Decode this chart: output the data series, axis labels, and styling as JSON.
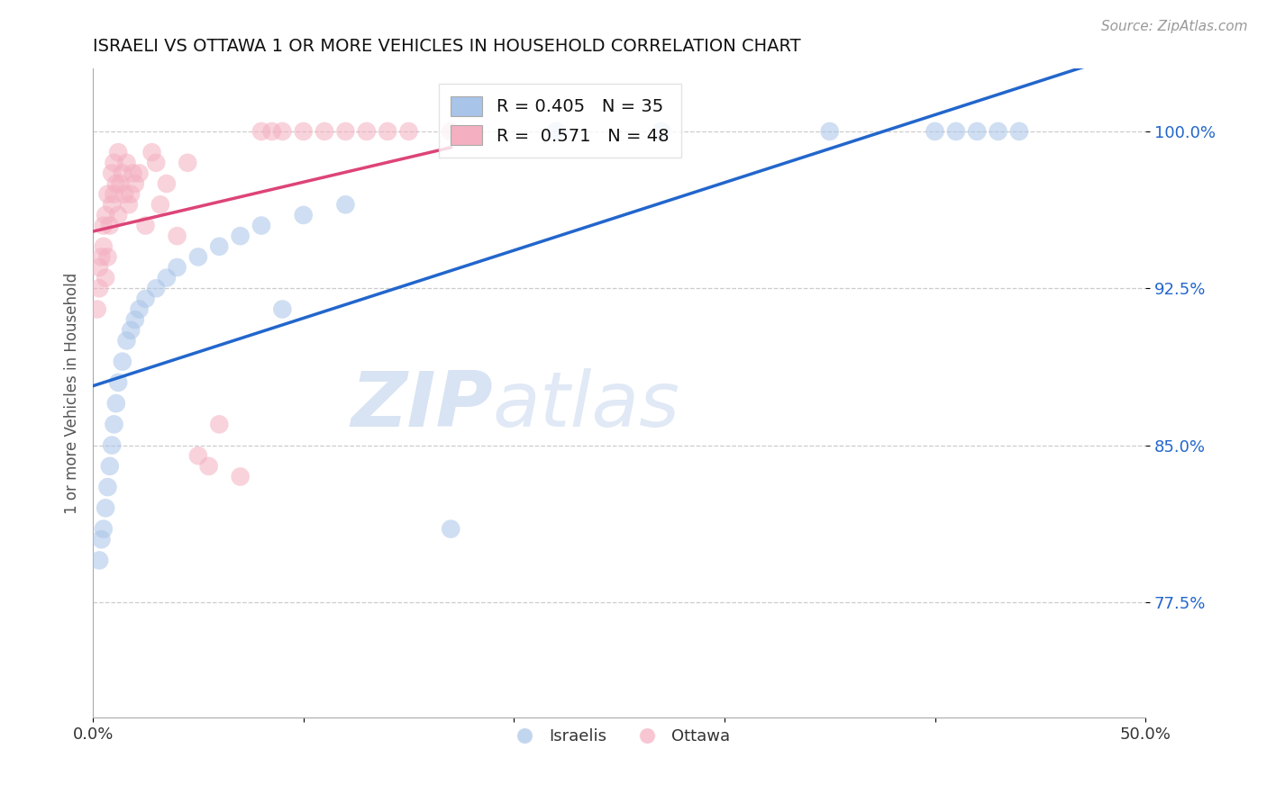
{
  "title": "ISRAELI VS OTTAWA 1 OR MORE VEHICLES IN HOUSEHOLD CORRELATION CHART",
  "source": "Source: ZipAtlas.com",
  "ylabel": "1 or more Vehicles in Household",
  "xlim": [
    0.0,
    50.0
  ],
  "ylim": [
    72.0,
    103.0
  ],
  "yticks": [
    77.5,
    85.0,
    92.5,
    100.0
  ],
  "xticks": [
    0.0,
    10.0,
    20.0,
    30.0,
    40.0,
    50.0
  ],
  "xtick_labels": [
    "0.0%",
    "",
    "",
    "",
    "",
    "50.0%"
  ],
  "ytick_labels": [
    "77.5%",
    "85.0%",
    "92.5%",
    "100.0%"
  ],
  "blue_color": "#a8c4e8",
  "pink_color": "#f4afc0",
  "blue_line_color": "#2266cc",
  "pink_line_color": "#dd4477",
  "watermark_zip": "ZIP",
  "watermark_atlas": "atlas",
  "israelis_x": [
    0.3,
    0.4,
    0.5,
    0.6,
    0.7,
    0.8,
    0.9,
    1.0,
    1.1,
    1.2,
    1.4,
    1.6,
    1.8,
    2.0,
    2.2,
    2.5,
    3.0,
    3.5,
    4.0,
    5.0,
    6.0,
    7.0,
    8.0,
    9.0,
    10.0,
    12.0,
    17.0,
    22.0,
    27.0,
    35.0,
    40.0,
    41.0,
    42.0,
    43.0,
    44.0
  ],
  "israelis_y": [
    79.5,
    80.5,
    81.0,
    82.0,
    83.0,
    84.0,
    85.0,
    86.0,
    87.0,
    88.0,
    89.0,
    90.0,
    90.5,
    91.0,
    91.5,
    92.0,
    92.5,
    93.0,
    93.5,
    94.0,
    94.5,
    95.0,
    95.5,
    91.5,
    96.0,
    96.5,
    81.0,
    100.0,
    100.0,
    100.0,
    100.0,
    100.0,
    100.0,
    100.0,
    100.0
  ],
  "ottawa_x": [
    0.2,
    0.3,
    0.3,
    0.4,
    0.5,
    0.5,
    0.6,
    0.6,
    0.7,
    0.7,
    0.8,
    0.9,
    0.9,
    1.0,
    1.0,
    1.1,
    1.2,
    1.2,
    1.3,
    1.4,
    1.5,
    1.6,
    1.7,
    1.8,
    1.9,
    2.0,
    2.2,
    2.5,
    2.8,
    3.0,
    3.2,
    3.5,
    4.0,
    4.5,
    5.0,
    5.5,
    6.0,
    7.0,
    8.0,
    8.5,
    9.0,
    10.0,
    11.0,
    12.0,
    13.0,
    14.0,
    15.0,
    17.0
  ],
  "ottawa_y": [
    91.5,
    92.5,
    93.5,
    94.0,
    94.5,
    95.5,
    93.0,
    96.0,
    94.0,
    97.0,
    95.5,
    96.5,
    98.0,
    97.0,
    98.5,
    97.5,
    96.0,
    99.0,
    97.5,
    98.0,
    97.0,
    98.5,
    96.5,
    97.0,
    98.0,
    97.5,
    98.0,
    95.5,
    99.0,
    98.5,
    96.5,
    97.5,
    95.0,
    98.5,
    84.5,
    84.0,
    86.0,
    83.5,
    100.0,
    100.0,
    100.0,
    100.0,
    100.0,
    100.0,
    100.0,
    100.0,
    100.0,
    100.0
  ]
}
